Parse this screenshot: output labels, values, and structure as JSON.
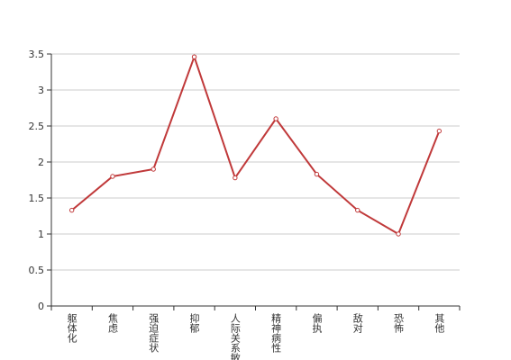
{
  "chart_data": {
    "type": "line",
    "categories": [
      "躯体化",
      "焦虑",
      "强迫症状",
      "抑郁",
      "人际关系敏感",
      "精神病性",
      "偏执",
      "敌对",
      "恐怖",
      "其他"
    ],
    "series": [
      {
        "color": "#c0393a",
        "values": [
          1.33,
          1.8,
          1.9,
          3.46,
          1.78,
          2.6,
          1.83,
          1.33,
          1.0,
          2.43
        ]
      }
    ],
    "ylim": [
      0,
      3.5
    ],
    "yticks": [
      0,
      0.5,
      1,
      1.5,
      2,
      2.5,
      3,
      3.5
    ],
    "grid": true
  }
}
